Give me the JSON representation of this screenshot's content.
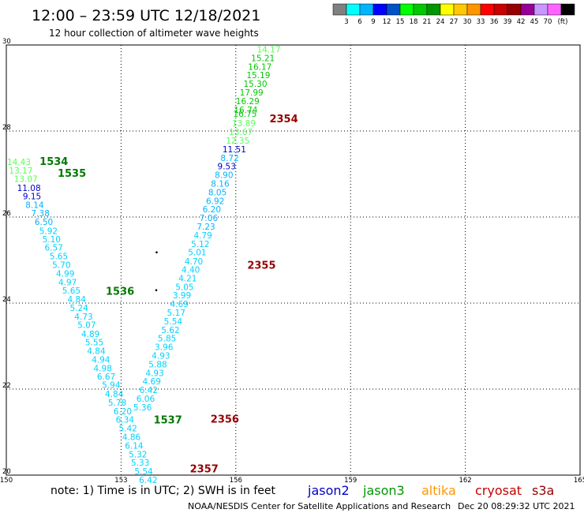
{
  "header": {
    "title": "12:00 – 23:59 UTC 12/18/2021",
    "subtitle": "12 hour collection of altimeter wave heights"
  },
  "legend": {
    "colors": [
      "#808080",
      "#00ffff",
      "#00b4ff",
      "#0000ff",
      "#0050c8",
      "#00ff00",
      "#00c800",
      "#009600",
      "#ffff00",
      "#ffc800",
      "#ff9600",
      "#ff0000",
      "#c80000",
      "#960000",
      "#960096",
      "#c896ff",
      "#ff64ff",
      "#000000"
    ],
    "labels": [
      "3",
      "6",
      "9",
      "12",
      "15",
      "18",
      "21",
      "24",
      "27",
      "30",
      "33",
      "36",
      "39",
      "42",
      "45",
      "70"
    ],
    "unit": "(ft)"
  },
  "axes": {
    "lon_ticks": [
      "150",
      "153",
      "156",
      "159",
      "162",
      "165"
    ],
    "lat_ticks": [
      "20",
      "22",
      "24",
      "26",
      "28",
      "30"
    ]
  },
  "tracks": [
    {
      "time": "1534",
      "color": "#007800",
      "lon": 150.87,
      "lat": 27.3
    },
    {
      "time": "1535",
      "color": "#007800",
      "lon": 151.34,
      "lat": 27.03
    },
    {
      "time": "1536",
      "color": "#007800",
      "lon": 152.6,
      "lat": 24.28
    },
    {
      "time": "1537",
      "color": "#007800",
      "lon": 153.85,
      "lat": 21.29
    },
    {
      "time": "2354",
      "color": "#960000",
      "lon": 156.88,
      "lat": 28.29
    },
    {
      "time": "2355",
      "color": "#960000",
      "lon": 156.3,
      "lat": 24.89
    },
    {
      "time": "2356",
      "color": "#960000",
      "lon": 155.34,
      "lat": 21.31
    },
    {
      "time": "2357",
      "color": "#960000",
      "lon": 154.8,
      "lat": 20.16
    }
  ],
  "points": [
    {
      "v": "14.43",
      "c": "#5aff5a",
      "lon": 150.02,
      "lat": 27.28
    },
    {
      "v": "13.17",
      "c": "#5aff5a",
      "lon": 150.07,
      "lat": 27.08
    },
    {
      "v": "13.07",
      "c": "#5aff5a",
      "lon": 150.2,
      "lat": 26.89
    },
    {
      "v": "11.08",
      "c": "#0000c8",
      "lon": 150.28,
      "lat": 26.68
    },
    {
      "v": "9.15",
      "c": "#0000c8",
      "lon": 150.43,
      "lat": 26.49
    },
    {
      "v": "8.14",
      "c": "#00b4ff",
      "lon": 150.5,
      "lat": 26.28
    },
    {
      "v": "7.38",
      "c": "#00b4ff",
      "lon": 150.65,
      "lat": 26.09
    },
    {
      "v": "6.50",
      "c": "#00b4ff",
      "lon": 150.74,
      "lat": 25.89
    },
    {
      "v": "5.92",
      "c": "#00d2ff",
      "lon": 150.86,
      "lat": 25.68
    },
    {
      "v": "5.10",
      "c": "#00d2ff",
      "lon": 150.94,
      "lat": 25.49
    },
    {
      "v": "6.57",
      "c": "#00d2ff",
      "lon": 151.0,
      "lat": 25.29
    },
    {
      "v": "5.65",
      "c": "#00d2ff",
      "lon": 151.13,
      "lat": 25.09
    },
    {
      "v": "5.70",
      "c": "#00d2ff",
      "lon": 151.2,
      "lat": 24.89
    },
    {
      "v": "4.99",
      "c": "#00d2ff",
      "lon": 151.3,
      "lat": 24.69
    },
    {
      "v": "4.97",
      "c": "#00d2ff",
      "lon": 151.36,
      "lat": 24.49
    },
    {
      "v": "5.65",
      "c": "#00d2ff",
      "lon": 151.46,
      "lat": 24.29
    },
    {
      "v": "4.84",
      "c": "#00d2ff",
      "lon": 151.6,
      "lat": 24.09
    },
    {
      "v": "5.24",
      "c": "#00d2ff",
      "lon": 151.66,
      "lat": 23.89
    },
    {
      "v": "4.73",
      "c": "#00d2ff",
      "lon": 151.78,
      "lat": 23.69
    },
    {
      "v": "5.07",
      "c": "#00d2ff",
      "lon": 151.86,
      "lat": 23.5
    },
    {
      "v": "4.89",
      "c": "#00d2ff",
      "lon": 151.96,
      "lat": 23.28
    },
    {
      "v": "5.55",
      "c": "#00d2ff",
      "lon": 152.06,
      "lat": 23.09
    },
    {
      "v": "4.84",
      "c": "#00d2ff",
      "lon": 152.11,
      "lat": 22.89
    },
    {
      "v": "4.94",
      "c": "#00d2ff",
      "lon": 152.23,
      "lat": 22.69
    },
    {
      "v": "4.98",
      "c": "#00d2ff",
      "lon": 152.28,
      "lat": 22.49
    },
    {
      "v": "6.67",
      "c": "#00d2ff",
      "lon": 152.37,
      "lat": 22.29
    },
    {
      "v": "5.94",
      "c": "#00d2ff",
      "lon": 152.5,
      "lat": 22.1
    },
    {
      "v": "4.84",
      "c": "#00d2ff",
      "lon": 152.58,
      "lat": 21.89
    },
    {
      "v": "5.78",
      "c": "#00d2ff",
      "lon": 152.66,
      "lat": 21.69
    },
    {
      "v": "6.20",
      "c": "#00d2ff",
      "lon": 152.8,
      "lat": 21.49
    },
    {
      "v": "6.34",
      "c": "#00d2ff",
      "lon": 152.86,
      "lat": 21.29
    },
    {
      "v": "5.42",
      "c": "#00d2ff",
      "lon": 152.94,
      "lat": 21.09
    },
    {
      "v": "4.86",
      "c": "#00d2ff",
      "lon": 153.03,
      "lat": 20.89
    },
    {
      "v": "6.14",
      "c": "#00d2ff",
      "lon": 153.1,
      "lat": 20.69
    },
    {
      "v": "5.32",
      "c": "#00d2ff",
      "lon": 153.2,
      "lat": 20.49
    },
    {
      "v": "5.33",
      "c": "#00d2ff",
      "lon": 153.26,
      "lat": 20.29
    },
    {
      "v": "5.54",
      "c": "#00d2ff",
      "lon": 153.35,
      "lat": 20.09
    },
    {
      "v": "6.42",
      "c": "#00d2ff",
      "lon": 153.47,
      "lat": 19.89
    },
    {
      "v": "14.17",
      "c": "#5aff5a",
      "lon": 156.55,
      "lat": 29.9
    },
    {
      "v": "15.21",
      "c": "#00c800",
      "lon": 156.4,
      "lat": 29.7
    },
    {
      "v": "16.17",
      "c": "#00c800",
      "lon": 156.32,
      "lat": 29.5
    },
    {
      "v": "15.19",
      "c": "#00c800",
      "lon": 156.28,
      "lat": 29.3
    },
    {
      "v": "15.30",
      "c": "#00c800",
      "lon": 156.2,
      "lat": 29.1
    },
    {
      "v": "17.99",
      "c": "#00c800",
      "lon": 156.1,
      "lat": 28.9
    },
    {
      "v": "16.29",
      "c": "#00c800",
      "lon": 156.0,
      "lat": 28.7
    },
    {
      "v": "16.74",
      "c": "#00c800",
      "lon": 155.95,
      "lat": 28.5
    },
    {
      "v": "16.75",
      "c": "#00c800",
      "lon": 155.93,
      "lat": 28.4
    },
    {
      "v": "13.89",
      "c": "#5aff5a",
      "lon": 155.9,
      "lat": 28.18
    },
    {
      "v": "13.67",
      "c": "#5aff5a",
      "lon": 155.82,
      "lat": 27.98
    },
    {
      "v": "12.35",
      "c": "#5aff5a",
      "lon": 155.74,
      "lat": 27.78
    },
    {
      "v": "11.51",
      "c": "#0000c8",
      "lon": 155.65,
      "lat": 27.58
    },
    {
      "v": "8.72",
      "c": "#00b4ff",
      "lon": 155.6,
      "lat": 27.38
    },
    {
      "v": "9.53",
      "c": "#0000c8",
      "lon": 155.52,
      "lat": 27.18
    },
    {
      "v": "8.90",
      "c": "#00b4ff",
      "lon": 155.45,
      "lat": 26.98
    },
    {
      "v": "8.16",
      "c": "#00b4ff",
      "lon": 155.35,
      "lat": 26.78
    },
    {
      "v": "8.05",
      "c": "#00b4ff",
      "lon": 155.28,
      "lat": 26.58
    },
    {
      "v": "6.92",
      "c": "#00b4ff",
      "lon": 155.22,
      "lat": 26.38
    },
    {
      "v": "6.20",
      "c": "#00b4ff",
      "lon": 155.13,
      "lat": 26.18
    },
    {
      "v": "7.06",
      "c": "#00b4ff",
      "lon": 155.05,
      "lat": 25.98
    },
    {
      "v": "7.23",
      "c": "#00b4ff",
      "lon": 154.98,
      "lat": 25.78
    },
    {
      "v": "4.79",
      "c": "#00d2ff",
      "lon": 154.9,
      "lat": 25.58
    },
    {
      "v": "5.12",
      "c": "#00d2ff",
      "lon": 154.83,
      "lat": 25.38
    },
    {
      "v": "5.01",
      "c": "#00d2ff",
      "lon": 154.75,
      "lat": 25.18
    },
    {
      "v": "4.70",
      "c": "#00d2ff",
      "lon": 154.66,
      "lat": 24.97
    },
    {
      "v": "4.40",
      "c": "#00d2ff",
      "lon": 154.58,
      "lat": 24.78
    },
    {
      "v": "4.21",
      "c": "#00d2ff",
      "lon": 154.5,
      "lat": 24.58
    },
    {
      "v": "5.05",
      "c": "#00d2ff",
      "lon": 154.42,
      "lat": 24.38
    },
    {
      "v": "3.99",
      "c": "#00d2ff",
      "lon": 154.35,
      "lat": 24.18
    },
    {
      "v": "4.69",
      "c": "#00d2ff",
      "lon": 154.28,
      "lat": 23.98
    },
    {
      "v": "5.17",
      "c": "#00d2ff",
      "lon": 154.2,
      "lat": 23.78
    },
    {
      "v": "5.54",
      "c": "#00d2ff",
      "lon": 154.12,
      "lat": 23.58
    },
    {
      "v": "5.62",
      "c": "#00d2ff",
      "lon": 154.05,
      "lat": 23.38
    },
    {
      "v": "5.85",
      "c": "#00d2ff",
      "lon": 153.96,
      "lat": 23.18
    },
    {
      "v": "3.96",
      "c": "#00d2ff",
      "lon": 153.88,
      "lat": 22.98
    },
    {
      "v": "4.93",
      "c": "#00d2ff",
      "lon": 153.8,
      "lat": 22.78
    },
    {
      "v": "5.88",
      "c": "#00d2ff",
      "lon": 153.72,
      "lat": 22.58
    },
    {
      "v": "4.93",
      "c": "#00d2ff",
      "lon": 153.64,
      "lat": 22.38
    },
    {
      "v": "4.69",
      "c": "#00d2ff",
      "lon": 153.56,
      "lat": 22.18
    },
    {
      "v": "6.42",
      "c": "#00d2ff",
      "lon": 153.48,
      "lat": 21.98
    },
    {
      "v": "6.06",
      "c": "#00d2ff",
      "lon": 153.4,
      "lat": 21.78
    },
    {
      "v": "5.36",
      "c": "#00d2ff",
      "lon": 153.32,
      "lat": 21.58
    }
  ],
  "dots": [
    {
      "lon": 153.93,
      "lat": 25.18
    },
    {
      "lon": 153.92,
      "lat": 24.3
    }
  ],
  "satellites": [
    {
      "name": "jason2",
      "color": "#0000c8"
    },
    {
      "name": "jason3",
      "color": "#009600"
    },
    {
      "name": "altika",
      "color": "#ff9600"
    },
    {
      "name": "cryosat",
      "color": "#c80000"
    },
    {
      "name": "s3a",
      "color": "#960000"
    }
  ],
  "footer": {
    "note": "note:  1) Time is in UTC;  2) SWH is in feet",
    "credit": "NOAA/NESDIS Center for Satellite Applications and Research",
    "timestamp": "Dec 20 08:29:32 UTC 2021"
  }
}
